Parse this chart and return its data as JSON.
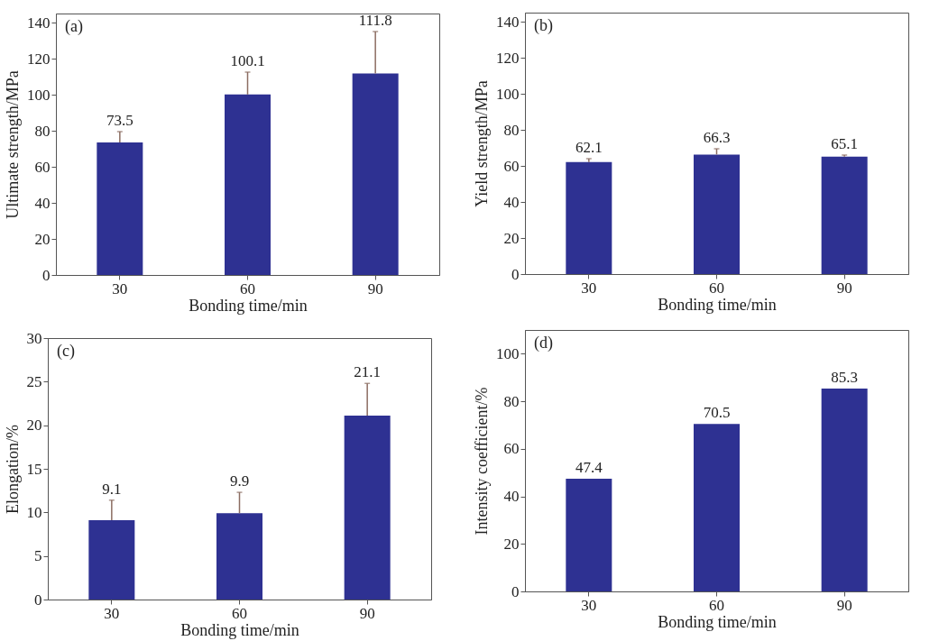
{
  "chart_data": [
    {
      "type": "bar",
      "xlabel": "Bonding time/min",
      "ylabel": "Ultimate strength/MPa",
      "categories": [
        "30",
        "60",
        "90"
      ],
      "values": [
        73.5,
        100.1,
        111.8
      ],
      "errors": [
        [
          73.5,
          79.5
        ],
        [
          100.1,
          112.5
        ],
        [
          111.8,
          135
        ]
      ],
      "color": "#2e3192",
      "ylim": [
        0,
        145
      ],
      "yticks": [
        0,
        20,
        40,
        60,
        80,
        100,
        120,
        140
      ],
      "grid": false,
      "data_labels": true,
      "annotations": [
        "(a)"
      ]
    },
    {
      "type": "bar",
      "xlabel": "Bonding time/min",
      "ylabel": "Yield strength/MPa",
      "categories": [
        "30",
        "60",
        "90"
      ],
      "values": [
        62.1,
        66.3,
        65.1
      ],
      "errors": [
        [
          62.1,
          64
        ],
        [
          66.3,
          69.5
        ],
        [
          65.1,
          66
        ]
      ],
      "color": "#2e3192",
      "ylim": [
        0,
        145
      ],
      "yticks": [
        0,
        20,
        40,
        60,
        80,
        100,
        120,
        140
      ],
      "grid": false,
      "data_labels": true,
      "annotations": [
        "(b)"
      ]
    },
    {
      "type": "bar",
      "xlabel": "Bonding time/min",
      "ylabel": "Elongation/%",
      "categories": [
        "30",
        "60",
        "90"
      ],
      "values": [
        9.1,
        9.9,
        21.1
      ],
      "errors": [
        [
          9.1,
          11.4
        ],
        [
          9.9,
          12.3
        ],
        [
          21.1,
          24.8
        ]
      ],
      "color": "#2e3192",
      "ylim": [
        0,
        30
      ],
      "yticks": [
        0,
        5,
        10,
        15,
        20,
        25,
        30
      ],
      "grid": false,
      "data_labels": true,
      "annotations": [
        "(c)"
      ]
    },
    {
      "type": "bar",
      "xlabel": "Bonding time/min",
      "ylabel": "Intensity coefficient/%",
      "categories": [
        "30",
        "60",
        "90"
      ],
      "values": [
        47.4,
        70.5,
        85.3
      ],
      "color": "#2e3192",
      "ylim": [
        0,
        110
      ],
      "yticks": [
        0,
        20,
        40,
        60,
        80,
        100
      ],
      "grid": false,
      "data_labels": true,
      "annotations": [
        "(d)"
      ]
    }
  ]
}
